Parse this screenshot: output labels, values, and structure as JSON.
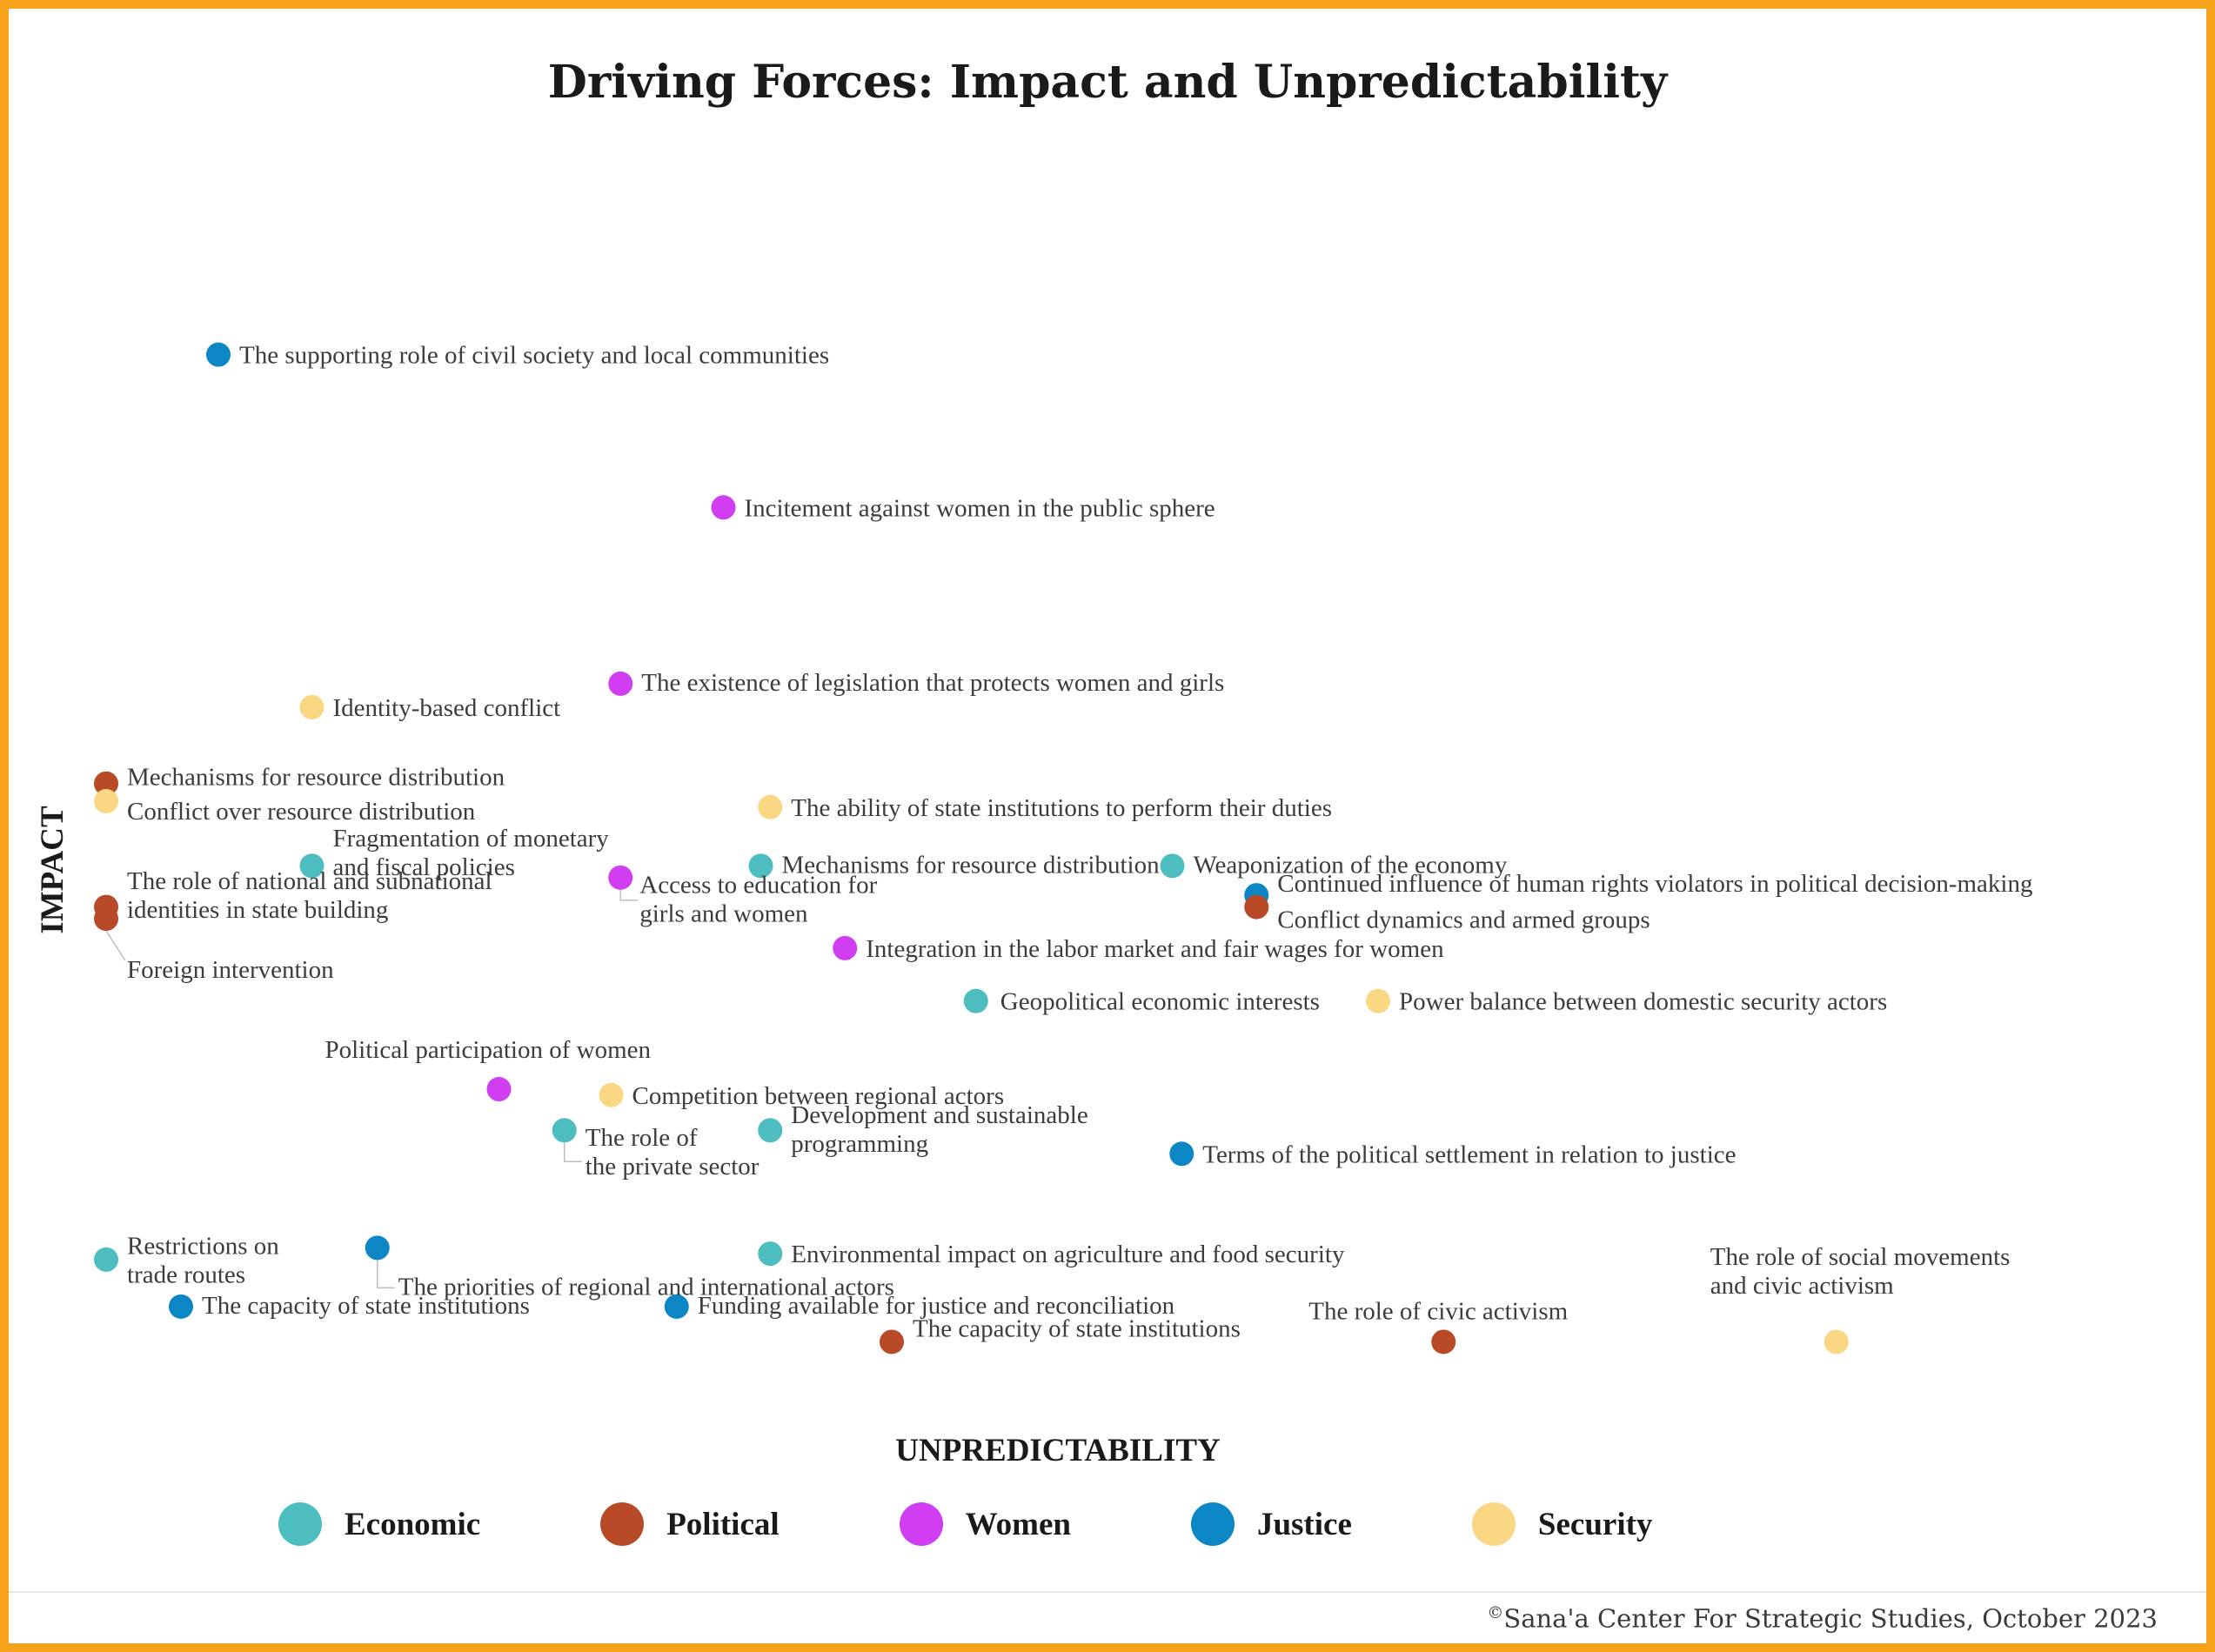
{
  "chart_data": {
    "type": "scatter",
    "title": "Driving Forces: Impact and Unpredictability",
    "xlabel": "UNPREDICTABILITY",
    "ylabel": "IMPACT",
    "grid": false,
    "legend_position": "bottom",
    "categories": [
      {
        "key": "economic",
        "name": "Economic",
        "color": "#4DBDBF"
      },
      {
        "key": "political",
        "name": "Political",
        "color": "#B94A28"
      },
      {
        "key": "women",
        "name": "Women",
        "color": "#D13DF1"
      },
      {
        "key": "justice",
        "name": "Justice",
        "color": "#0D86C6"
      },
      {
        "key": "security",
        "name": "Security",
        "color": "#FAD782"
      }
    ],
    "points": [
      {
        "category": "justice",
        "label": [
          "The supporting role of civil society and local communities"
        ],
        "x": 0.06,
        "y": 0.87
      },
      {
        "category": "women",
        "label": [
          "Incitement against women in the public sphere"
        ],
        "x": 0.33,
        "y": 0.74
      },
      {
        "category": "women",
        "label": [
          "The existence of legislation that protects women and girls"
        ],
        "x": 0.275,
        "y": 0.59
      },
      {
        "category": "security",
        "label": [
          "Identity-based conflict"
        ],
        "x": 0.11,
        "y": 0.57
      },
      {
        "category": "political",
        "label": [
          "Mechanisms for resource distribution"
        ],
        "x": 0.0,
        "y": 0.505
      },
      {
        "category": "security",
        "label": [
          "Conflict over resource distribution"
        ],
        "x": 0.0,
        "y": 0.49
      },
      {
        "category": "security",
        "label": [
          "The ability of state institutions to perform their duties"
        ],
        "x": 0.355,
        "y": 0.485
      },
      {
        "category": "economic",
        "label": [
          "Fragmentation of monetary",
          "and fiscal policies"
        ],
        "x": 0.11,
        "y": 0.435
      },
      {
        "category": "women",
        "label": [
          "Access to education for",
          "girls and women"
        ],
        "x": 0.275,
        "y": 0.425
      },
      {
        "category": "economic",
        "label": [
          "Mechanisms for resource distribution"
        ],
        "x": 0.35,
        "y": 0.435
      },
      {
        "category": "economic",
        "label": [
          "Weaponization of the economy"
        ],
        "x": 0.57,
        "y": 0.435
      },
      {
        "category": "justice",
        "label": [
          "Continued influence of human rights violators in political decision-making"
        ],
        "x": 0.615,
        "y": 0.41
      },
      {
        "category": "political",
        "label": [
          "Conflict dynamics and armed groups"
        ],
        "x": 0.615,
        "y": 0.4
      },
      {
        "category": "political",
        "label": [
          "The role of national and subnational",
          "identities in state building"
        ],
        "x": 0.0,
        "y": 0.4
      },
      {
        "category": "political",
        "label": [
          "Foreign intervention"
        ],
        "x": 0.0,
        "y": 0.39
      },
      {
        "category": "women",
        "label": [
          "Integration in the labor market and fair wages for women"
        ],
        "x": 0.395,
        "y": 0.365
      },
      {
        "category": "economic",
        "label": [
          "Geopolitical economic interests"
        ],
        "x": 0.465,
        "y": 0.32
      },
      {
        "category": "security",
        "label": [
          "Power balance between domestic security actors"
        ],
        "x": 0.68,
        "y": 0.32
      },
      {
        "category": "women",
        "label": [
          "Political participation of women"
        ],
        "x": 0.21,
        "y": 0.245
      },
      {
        "category": "security",
        "label": [
          "Competition between regional actors"
        ],
        "x": 0.27,
        "y": 0.24
      },
      {
        "category": "economic",
        "label": [
          "The role of",
          "the private sector"
        ],
        "x": 0.245,
        "y": 0.21
      },
      {
        "category": "economic",
        "label": [
          "Development and sustainable",
          "programming"
        ],
        "x": 0.355,
        "y": 0.21
      },
      {
        "category": "justice",
        "label": [
          "Terms of the political settlement in relation to justice"
        ],
        "x": 0.575,
        "y": 0.19
      },
      {
        "category": "economic",
        "label": [
          "Restrictions on",
          "trade routes"
        ],
        "x": 0.0,
        "y": 0.1
      },
      {
        "category": "justice",
        "label": [
          "The priorities of regional and international actors"
        ],
        "x": 0.145,
        "y": 0.11
      },
      {
        "category": "economic",
        "label": [
          "Environmental impact on agriculture and food security"
        ],
        "x": 0.355,
        "y": 0.105
      },
      {
        "category": "justice",
        "label": [
          "The capacity of state institutions"
        ],
        "x": 0.04,
        "y": 0.06
      },
      {
        "category": "justice",
        "label": [
          "Funding available for justice and reconciliation"
        ],
        "x": 0.305,
        "y": 0.06
      },
      {
        "category": "political",
        "label": [
          "The capacity of state institutions"
        ],
        "x": 0.42,
        "y": 0.03
      },
      {
        "category": "political",
        "label": [
          "The role of civic activism"
        ],
        "x": 0.715,
        "y": 0.03
      },
      {
        "category": "security",
        "label": [
          "The role of social movements",
          "and civic activism"
        ],
        "x": 0.925,
        "y": 0.03
      }
    ]
  },
  "legend": {
    "economic": "Economic",
    "political": "Political",
    "women": "Women",
    "justice": "Justice",
    "security": "Security"
  },
  "credit": {
    "mark": "©",
    "text": "Sana'a Center For Strategic Studies, October 2023"
  },
  "colors": {
    "border": "#F7A21B"
  }
}
